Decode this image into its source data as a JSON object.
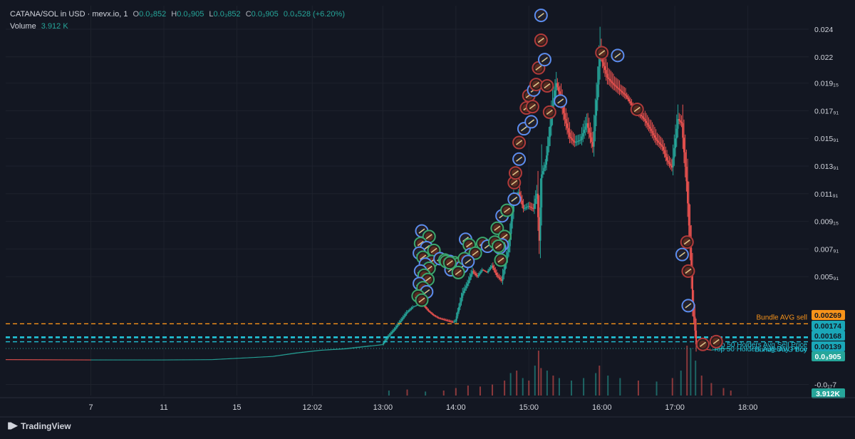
{
  "header": {
    "symbol": "CATANA/SOL in USD · mevx.io, 1",
    "o_label": "O",
    "o_value": "0.0₃852",
    "h_label": "H",
    "h_value": "0.0₃905",
    "l_label": "L",
    "l_value": "0.0₃852",
    "c_label": "C",
    "c_value": "0.0₃905",
    "change": "0.0₄528 (+6.20%)",
    "volume_label": "Volume",
    "volume_value": "3.912 K"
  },
  "branding": {
    "logo_text": "TradingView"
  },
  "colors": {
    "background": "#131722",
    "up": "#26a69a",
    "down": "#ef5350",
    "grid": "#1e222d",
    "bundle_line": "#f7931a",
    "holders_line": "#22c3d7",
    "text": "#d1d4dc",
    "marker_blue": "#5b8def"
  },
  "chart_data": {
    "type": "candlestick",
    "price_axis": {
      "ticks": [
        "0.024",
        "0.022",
        "0.019₁₅",
        "0.017₉₁",
        "0.015₉₁",
        "0.013₉₁",
        "0.011₉₁",
        "0.009₁₅",
        "0.007₉₁",
        "0.005₉₁",
        "-0.0₁₇7"
      ],
      "tick_values": [
        0.024,
        0.022,
        0.0201,
        0.0181,
        0.0161,
        0.0141,
        0.0121,
        0.0101,
        0.0081,
        0.0061,
        -0.0017
      ],
      "ylim": [
        -0.0025,
        0.0257
      ]
    },
    "time_axis": {
      "labels": [
        "7",
        "11",
        "15",
        "12:02",
        "13:00",
        "14:00",
        "15:00",
        "16:00",
        "17:00",
        "18:00"
      ],
      "label_positions_min": [
        -300,
        -240,
        -180,
        -118,
        -60,
        0,
        60,
        120,
        180,
        240
      ]
    },
    "x_range_min": [
      -370,
      290
    ],
    "current_price": 0.000905,
    "current_price_label": "0.0₃905",
    "volume_label": "3.912K",
    "reference_lines": [
      {
        "name": "Bundle AVG sell",
        "value": 0.00269,
        "label": "0.00269",
        "color": "orange"
      },
      {
        "name": "Top 50 Holders Avg Sell Price",
        "value": 0.00174,
        "label": "0.00174",
        "color": "cyan"
      },
      {
        "name": "Top 50 Holders Avg Buy Price",
        "value": 0.00168,
        "label": "0.00168",
        "color": "cyan"
      },
      {
        "name": "Bundle AVG Buy",
        "value": 0.00139,
        "label": "0.00139",
        "color": "cyan"
      }
    ],
    "line_labels": [
      "Bundle AVG sell",
      "Top 50 Holders Avg Sell Price",
      "Bundle AVG Buy",
      "Top 50 Holders Avg Buy Price"
    ],
    "price_path": [
      [
        -370,
        0.00012
      ],
      [
        -300,
        0.0001
      ],
      [
        -240,
        0.0001
      ],
      [
        -200,
        0.00012
      ],
      [
        -150,
        0.00035
      ],
      [
        -130,
        0.0006
      ],
      [
        -110,
        0.0008
      ],
      [
        -90,
        0.0009
      ],
      [
        -70,
        0.0011
      ],
      [
        -60,
        0.0012
      ],
      [
        -55,
        0.0018
      ],
      [
        -50,
        0.0023
      ],
      [
        -45,
        0.0029
      ],
      [
        -40,
        0.0035
      ],
      [
        -35,
        0.0039
      ],
      [
        -30,
        0.0041
      ],
      [
        -26,
        0.004
      ],
      [
        -22,
        0.0036
      ],
      [
        -18,
        0.0033
      ],
      [
        -14,
        0.0031
      ],
      [
        -10,
        0.003
      ],
      [
        -6,
        0.0029
      ],
      [
        -2,
        0.0028
      ],
      [
        0,
        0.0029
      ],
      [
        3,
        0.0039
      ],
      [
        6,
        0.0049
      ],
      [
        10,
        0.0056
      ],
      [
        14,
        0.0065
      ],
      [
        18,
        0.0061
      ],
      [
        22,
        0.0066
      ],
      [
        26,
        0.0064
      ],
      [
        30,
        0.0069
      ],
      [
        34,
        0.0062
      ],
      [
        38,
        0.0058
      ],
      [
        41,
        0.007
      ],
      [
        44,
        0.0083
      ],
      [
        46,
        0.0101
      ],
      [
        48,
        0.0115
      ],
      [
        52,
        0.0122
      ],
      [
        56,
        0.011
      ],
      [
        60,
        0.0112
      ],
      [
        64,
        0.011
      ],
      [
        67,
        0.0121
      ],
      [
        69,
        0.0087
      ],
      [
        71,
        0.0135
      ],
      [
        74,
        0.0142
      ],
      [
        77,
        0.0162
      ],
      [
        80,
        0.0185
      ],
      [
        83,
        0.0201
      ],
      [
        86,
        0.0192
      ],
      [
        90,
        0.0175
      ],
      [
        94,
        0.0162
      ],
      [
        98,
        0.0158
      ],
      [
        103,
        0.016
      ],
      [
        108,
        0.0172
      ],
      [
        113,
        0.0155
      ],
      [
        117,
        0.02
      ],
      [
        119,
        0.0226
      ],
      [
        121,
        0.0216
      ],
      [
        125,
        0.0205
      ],
      [
        130,
        0.02
      ],
      [
        135,
        0.0196
      ],
      [
        140,
        0.0192
      ],
      [
        145,
        0.0185
      ],
      [
        150,
        0.018
      ],
      [
        155,
        0.0175
      ],
      [
        160,
        0.0168
      ],
      [
        165,
        0.016
      ],
      [
        170,
        0.0155
      ],
      [
        174,
        0.0145
      ],
      [
        178,
        0.014
      ],
      [
        183,
        0.0175
      ],
      [
        186,
        0.0172
      ],
      [
        190,
        0.013
      ],
      [
        193,
        0.0082
      ],
      [
        195,
        0.0042
      ],
      [
        198,
        0.0012
      ],
      [
        202,
        0.0009
      ],
      [
        210,
        0.0008
      ],
      [
        218,
        0.0009
      ],
      [
        226,
        0.000905
      ]
    ],
    "volume_bars": [
      [
        -55,
        0.1
      ],
      [
        -40,
        0.12
      ],
      [
        -25,
        0.08
      ],
      [
        -10,
        0.1
      ],
      [
        0,
        0.15
      ],
      [
        10,
        0.2
      ],
      [
        20,
        0.18
      ],
      [
        30,
        0.22
      ],
      [
        40,
        0.3
      ],
      [
        45,
        0.45
      ],
      [
        50,
        0.5
      ],
      [
        55,
        0.35
      ],
      [
        60,
        0.3
      ],
      [
        65,
        0.6
      ],
      [
        68,
        0.9
      ],
      [
        70,
        0.55
      ],
      [
        75,
        0.5
      ],
      [
        80,
        0.4
      ],
      [
        85,
        0.35
      ],
      [
        95,
        0.3
      ],
      [
        105,
        0.35
      ],
      [
        115,
        0.45
      ],
      [
        118,
        0.6
      ],
      [
        125,
        0.4
      ],
      [
        135,
        0.35
      ],
      [
        150,
        0.3
      ],
      [
        165,
        0.28
      ],
      [
        178,
        0.35
      ],
      [
        185,
        0.5
      ],
      [
        190,
        1.0
      ],
      [
        193,
        0.95
      ],
      [
        197,
        0.7
      ],
      [
        202,
        0.4
      ],
      [
        210,
        0.25
      ],
      [
        220,
        0.15
      ],
      [
        226,
        0.1
      ]
    ],
    "markers": [
      [
        -28,
        0.0094
      ],
      [
        -22,
        0.009
      ],
      [
        -29,
        0.0085
      ],
      [
        -24,
        0.0082
      ],
      [
        -18,
        0.008
      ],
      [
        -30,
        0.0078
      ],
      [
        -27,
        0.0075
      ],
      [
        -20,
        0.0072
      ],
      [
        -25,
        0.007
      ],
      [
        -22,
        0.0067
      ],
      [
        -29,
        0.0065
      ],
      [
        -26,
        0.0062
      ],
      [
        -23,
        0.0059
      ],
      [
        -30,
        0.0056
      ],
      [
        -27,
        0.0053
      ],
      [
        -24,
        0.005
      ],
      [
        -31,
        0.0047
      ],
      [
        -28,
        0.0044
      ],
      [
        -13,
        0.0074
      ],
      [
        -9,
        0.0073
      ],
      [
        -5,
        0.0072
      ],
      [
        -1,
        0.0071
      ],
      [
        2,
        0.007
      ],
      [
        5,
        0.0068
      ],
      [
        -8,
        0.0072
      ],
      [
        -4,
        0.0066
      ],
      [
        2,
        0.0064
      ],
      [
        -5,
        0.0071
      ],
      [
        8,
        0.0088
      ],
      [
        11,
        0.0084
      ],
      [
        12,
        0.0077
      ],
      [
        16,
        0.0078
      ],
      [
        7,
        0.0074
      ],
      [
        10,
        0.0072
      ],
      [
        22,
        0.0085
      ],
      [
        26,
        0.0083
      ],
      [
        34,
        0.0096
      ],
      [
        40,
        0.009
      ],
      [
        38,
        0.0084
      ],
      [
        32,
        0.0086
      ],
      [
        36,
        0.0082
      ],
      [
        37,
        0.0073
      ],
      [
        35,
        0.0083
      ],
      [
        38,
        0.0105
      ],
      [
        42,
        0.0109
      ],
      [
        48,
        0.0117
      ],
      [
        48,
        0.0129
      ],
      [
        49,
        0.0136
      ],
      [
        52,
        0.0146
      ],
      [
        52,
        0.0158
      ],
      [
        56,
        0.0168
      ],
      [
        58,
        0.0183
      ],
      [
        60,
        0.0192
      ],
      [
        62,
        0.0173
      ],
      [
        63,
        0.0184
      ],
      [
        64,
        0.0196
      ],
      [
        66,
        0.02
      ],
      [
        68,
        0.0212
      ],
      [
        70,
        0.025
      ],
      [
        70,
        0.0232
      ],
      [
        73,
        0.0218
      ],
      [
        75,
        0.0199
      ],
      [
        77,
        0.018
      ],
      [
        86,
        0.0188
      ],
      [
        120,
        0.0223
      ],
      [
        133,
        0.0221
      ],
      [
        149,
        0.0182
      ],
      [
        190,
        0.0086
      ],
      [
        186,
        0.0077
      ],
      [
        191,
        0.0065
      ],
      [
        191,
        0.004
      ],
      [
        203,
        0.0012
      ],
      [
        214,
        0.0014
      ]
    ]
  }
}
